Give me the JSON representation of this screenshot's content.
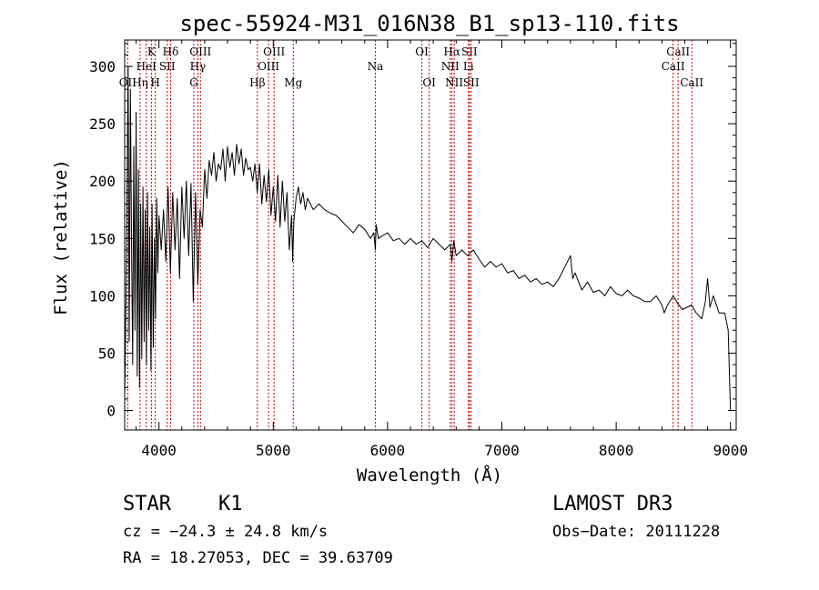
{
  "chart_data": {
    "type": "line",
    "title": "spec-55924-M31_016N38_B1_sp13-110.fits",
    "xlabel": "Wavelength (Å)",
    "ylabel": "Flux (relative)",
    "xlim": [
      3700,
      9050
    ],
    "ylim": [
      -17,
      323
    ],
    "x_ticks": [
      4000,
      5000,
      6000,
      7000,
      8000,
      9000
    ],
    "y_ticks": [
      0,
      50,
      100,
      150,
      200,
      250,
      300
    ],
    "x_tick_labels": [
      "4000",
      "5000",
      "6000",
      "7000",
      "8000",
      "9000"
    ],
    "y_tick_labels": [
      "0",
      "50",
      "100",
      "150",
      "200",
      "250",
      "300"
    ],
    "line_color": "#000000",
    "marker_color": "#cc0000",
    "series": [
      {
        "name": "flux",
        "x": [
          3700,
          3715,
          3730,
          3740,
          3750,
          3760,
          3770,
          3780,
          3790,
          3800,
          3810,
          3820,
          3830,
          3840,
          3850,
          3860,
          3870,
          3880,
          3890,
          3900,
          3910,
          3920,
          3930,
          3940,
          3950,
          3960,
          3970,
          3980,
          3990,
          4000,
          4020,
          4040,
          4060,
          4080,
          4100,
          4120,
          4140,
          4160,
          4180,
          4200,
          4220,
          4240,
          4260,
          4280,
          4300,
          4320,
          4340,
          4360,
          4380,
          4400,
          4420,
          4440,
          4460,
          4480,
          4500,
          4520,
          4540,
          4560,
          4580,
          4600,
          4620,
          4640,
          4660,
          4680,
          4700,
          4720,
          4740,
          4760,
          4780,
          4800,
          4820,
          4840,
          4860,
          4880,
          4900,
          4920,
          4940,
          4960,
          4980,
          5000,
          5020,
          5040,
          5060,
          5080,
          5100,
          5120,
          5140,
          5160,
          5170,
          5180,
          5200,
          5220,
          5240,
          5260,
          5280,
          5300,
          5350,
          5400,
          5450,
          5500,
          5550,
          5600,
          5650,
          5700,
          5750,
          5800,
          5850,
          5880,
          5893,
          5900,
          5920,
          5950,
          6000,
          6050,
          6100,
          6150,
          6200,
          6250,
          6300,
          6350,
          6400,
          6450,
          6500,
          6550,
          6563,
          6580,
          6600,
          6650,
          6700,
          6750,
          6800,
          6850,
          6900,
          6950,
          7000,
          7050,
          7100,
          7150,
          7200,
          7250,
          7300,
          7350,
          7400,
          7450,
          7500,
          7550,
          7600,
          7620,
          7640,
          7700,
          7750,
          7800,
          7850,
          7900,
          7950,
          8000,
          8050,
          8100,
          8150,
          8200,
          8250,
          8300,
          8350,
          8400,
          8420,
          8450,
          8500,
          8540,
          8580,
          8620,
          8660,
          8700,
          8750,
          8780,
          8800,
          8820,
          8850,
          8900,
          8950,
          8980,
          9000
        ],
        "y": [
          10,
          120,
          300,
          60,
          280,
          150,
          40,
          230,
          70,
          260,
          30,
          210,
          20,
          180,
          45,
          195,
          60,
          175,
          40,
          190,
          70,
          160,
          35,
          180,
          55,
          150,
          80,
          185,
          120,
          170,
          140,
          175,
          130,
          195,
          120,
          190,
          140,
          185,
          115,
          195,
          150,
          200,
          135,
          198,
          95,
          190,
          110,
          175,
          160,
          210,
          185,
          218,
          205,
          225,
          200,
          215,
          210,
          228,
          200,
          230,
          212,
          225,
          205,
          232,
          215,
          228,
          205,
          220,
          210,
          212,
          200,
          215,
          190,
          215,
          180,
          205,
          182,
          210,
          170,
          195,
          165,
          205,
          160,
          200,
          165,
          190,
          140,
          170,
          130,
          165,
          185,
          195,
          180,
          190,
          175,
          185,
          175,
          180,
          175,
          172,
          170,
          165,
          160,
          155,
          162,
          158,
          150,
          155,
          140,
          162,
          150,
          152,
          155,
          148,
          150,
          145,
          150,
          145,
          148,
          142,
          150,
          145,
          140,
          145,
          130,
          148,
          135,
          140,
          135,
          140,
          132,
          125,
          130,
          125,
          128,
          120,
          122,
          115,
          118,
          112,
          115,
          110,
          112,
          108,
          115,
          125,
          135,
          115,
          120,
          105,
          112,
          103,
          105,
          100,
          108,
          102,
          100,
          105,
          100,
          98,
          95,
          95,
          100,
          92,
          85,
          92,
          100,
          93,
          88,
          90,
          92,
          85,
          80,
          95,
          115,
          90,
          100,
          85,
          85,
          70,
          0
        ]
      }
    ],
    "lines": [
      {
        "name": "H&#948;",
        "label": "Hδ",
        "x": 4102,
        "row": 1
      },
      {
        "name": "OII",
        "label": "OII",
        "x": 3727,
        "row": 3
      },
      {
        "name": "HeI",
        "label": "HeI",
        "x": 3889,
        "row": 2
      },
      {
        "name": "H&#951;",
        "label": "Hη",
        "x": 3835,
        "row": 3
      },
      {
        "name": "H",
        "label": "H",
        "x": 3968,
        "row": 3
      },
      {
        "name": "K",
        "label": "K",
        "x": 3934,
        "row": 1
      },
      {
        "name": "SII",
        "label": "SII",
        "x": 4072,
        "row": 2
      },
      {
        "name": "OIII",
        "label": "OIII",
        "x": 4363,
        "row": 1
      },
      {
        "name": "Hγ",
        "label": "Hγ",
        "x": 4340,
        "row": 2
      },
      {
        "name": "G",
        "label": "G",
        "x": 4305,
        "row": 3
      },
      {
        "name": "Hβ",
        "label": "Hβ",
        "x": 4861,
        "row": 3
      },
      {
        "name": "OIII",
        "label": "OIII",
        "x": 5007,
        "row": 1
      },
      {
        "name": "OIII",
        "label": "OIII",
        "x": 4959,
        "row": 2
      },
      {
        "name": "Mg",
        "label": "Mg",
        "x": 5175,
        "row": 3
      },
      {
        "name": "Na",
        "label": "Na",
        "x": 5893,
        "row": 2
      },
      {
        "name": "OI",
        "label": "OI",
        "x": 6300,
        "row": 1
      },
      {
        "name": "OI",
        "label": "OI",
        "x": 6364,
        "row": 3
      },
      {
        "name": "Hα",
        "label": "Hα",
        "x": 6563,
        "row": 1
      },
      {
        "name": "NII",
        "label": "NII",
        "x": 6548,
        "row": 2
      },
      {
        "name": "NII",
        "label": "NII",
        "x": 6583,
        "row": 3
      },
      {
        "name": "SII",
        "label": "SII",
        "x": 6716,
        "row": 1
      },
      {
        "name": "Li",
        "label": "Li",
        "x": 6708,
        "row": 2
      },
      {
        "name": "SII",
        "label": "SII",
        "x": 6731,
        "row": 3
      },
      {
        "name": "CaII",
        "label": "CaII",
        "x": 8542,
        "row": 1
      },
      {
        "name": "CaII",
        "label": "CaII",
        "x": 8498,
        "row": 2
      },
      {
        "name": "CaII",
        "label": "CaII",
        "x": 8662,
        "row": 3
      }
    ]
  },
  "info": {
    "class": "STAR",
    "subclass": "K1",
    "survey": "LAMOST DR3",
    "cz": "cz = −24.3 ± 24.8 km/s",
    "obs_date": "Obs−Date: 20111228",
    "radec": "RA =  18.27053, DEC =  39.63709"
  }
}
